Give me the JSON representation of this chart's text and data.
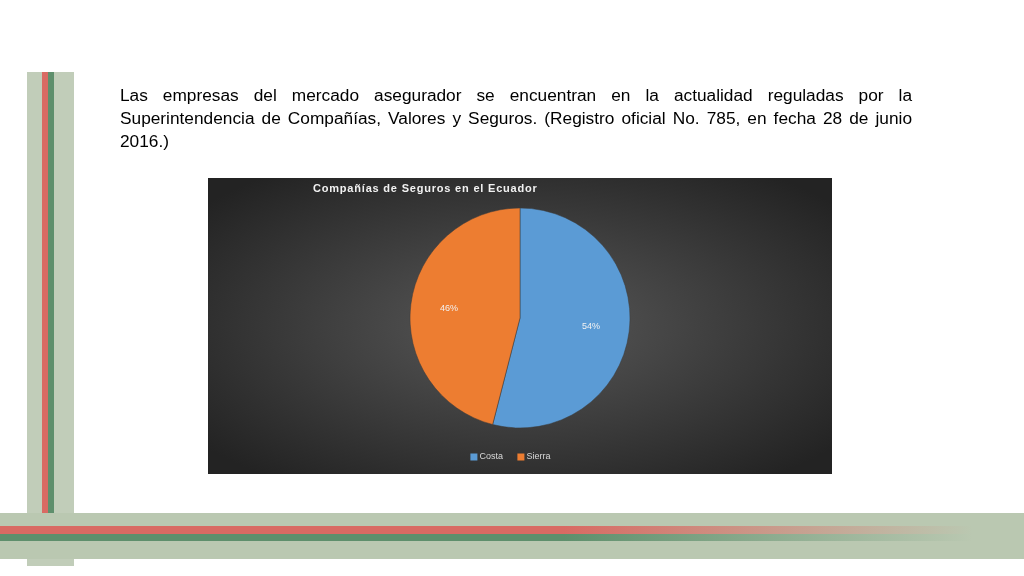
{
  "chart_data": {
    "type": "pie",
    "title": "Compañías de Seguros en el Ecuador",
    "annotations": [
      "Las empresas del mercado asegurador se encuentran en la actualidad reguladas por la Superintendencia de Compañías, Valores y Seguros. (Registro oficial No. 785, en fecha 28 de junio 2016.)"
    ],
    "categories": [
      "Costa",
      "Sierra"
    ],
    "values": [
      54,
      46
    ],
    "colors": [
      "#5b9bd5",
      "#ed7d31"
    ],
    "value_labels": [
      "54%",
      "46%"
    ],
    "legend": "bottom"
  }
}
